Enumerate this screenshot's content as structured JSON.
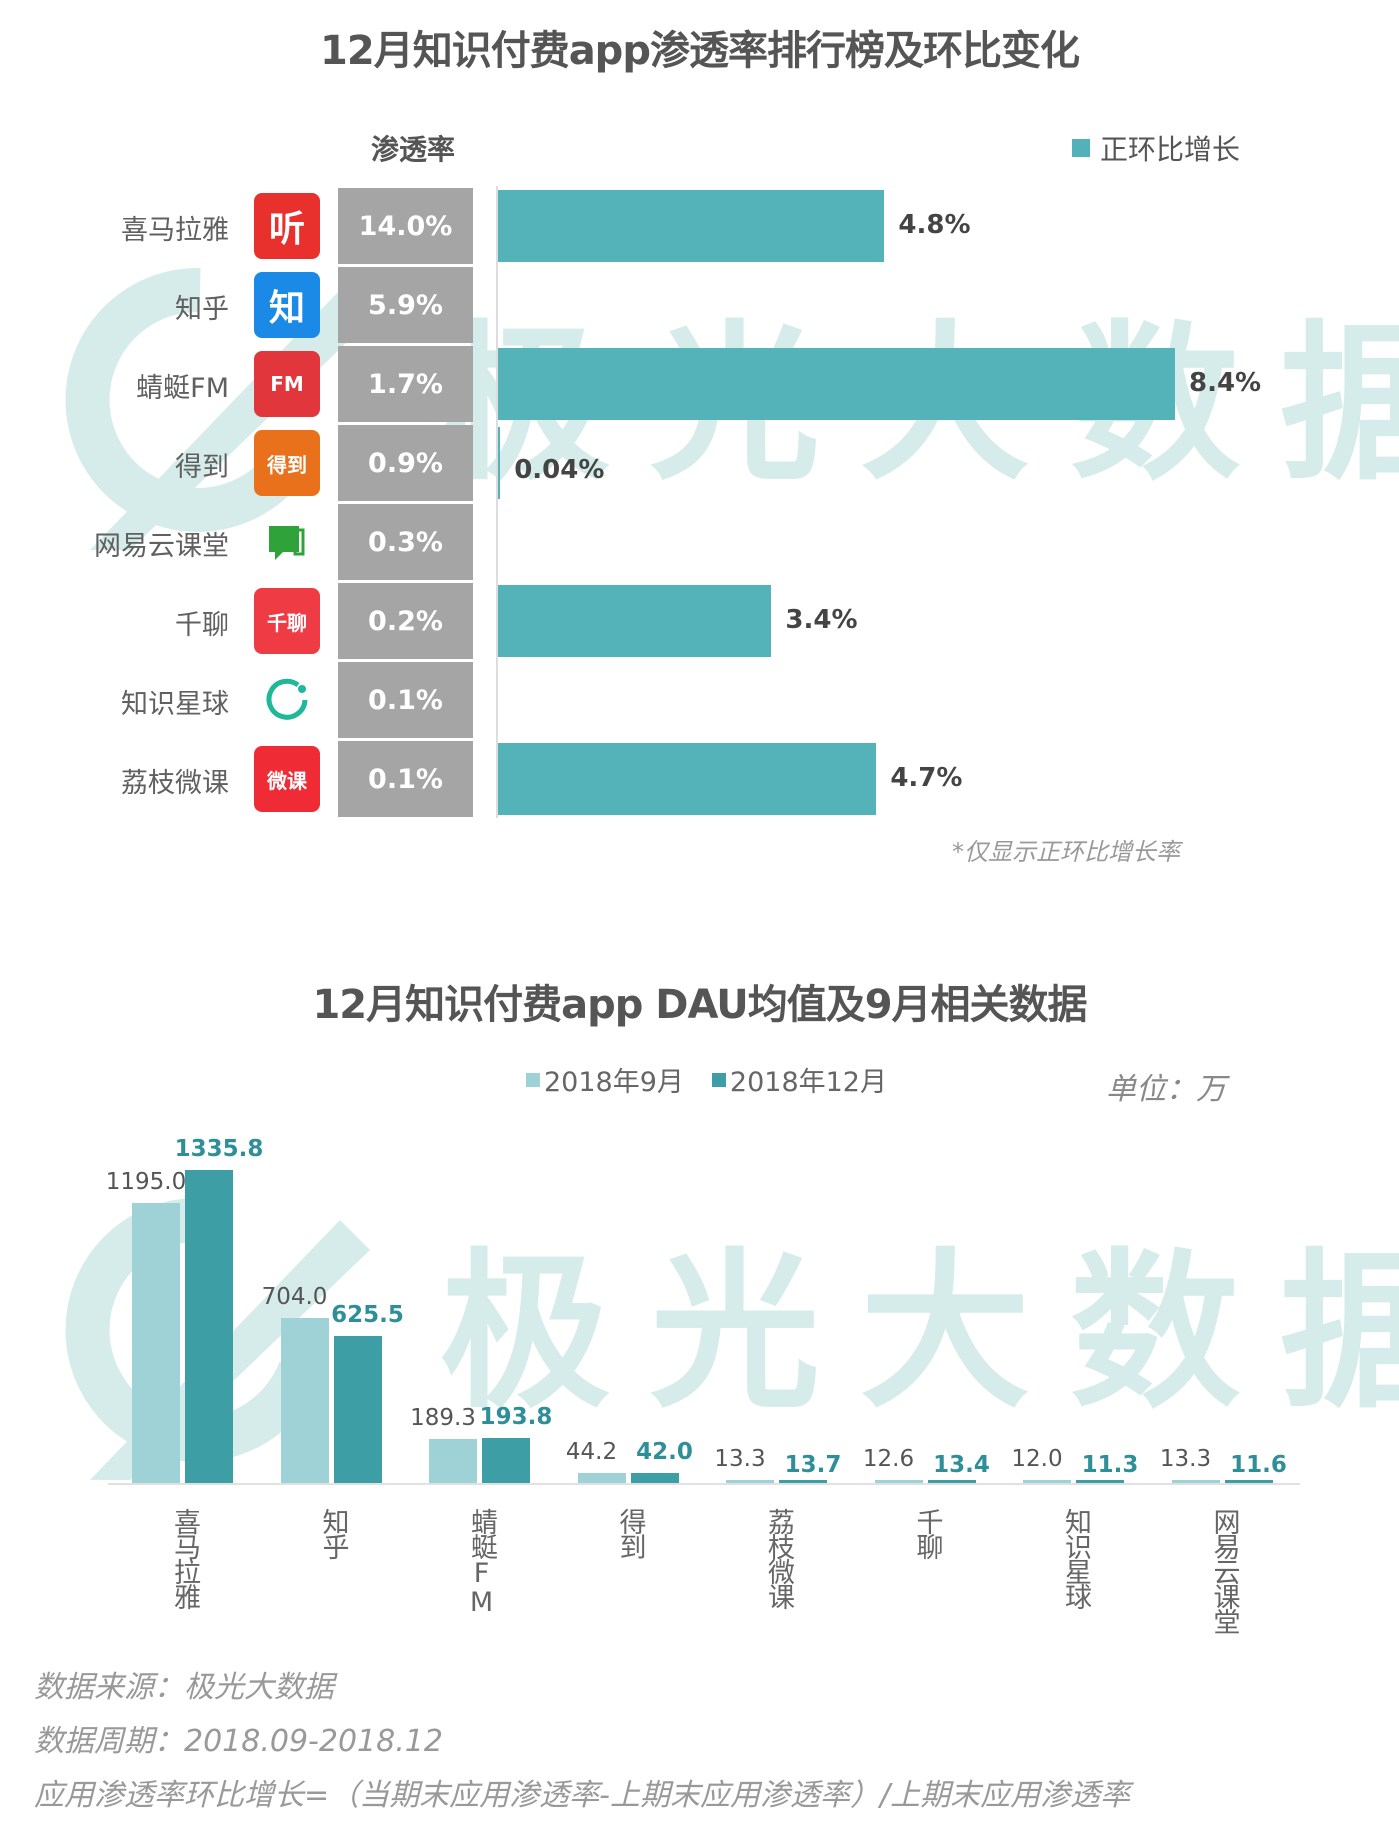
{
  "top_chart": {
    "title": "12月知识付费app渗透率排行榜及环比变化",
    "column_header": "渗透率",
    "legend_label": "正环比增长",
    "note": "*仅显示正环比增长率",
    "rows": [
      {
        "name": "喜马拉雅",
        "icon": "ximalaya-app-icon",
        "icon_text": "听",
        "icon_color": "#e8302d",
        "penetration": "14.0%",
        "growth": "4.8%",
        "growth_value": 4.8
      },
      {
        "name": "知乎",
        "icon": "zhihu-app-icon",
        "icon_text": "知",
        "icon_color": "#1a8ae6",
        "penetration": "5.9%",
        "growth": "",
        "growth_value": 0
      },
      {
        "name": "蜻蜓FM",
        "icon": "qingting-fm-app-icon",
        "icon_text": "FM",
        "icon_color": "#e1363b",
        "penetration": "1.7%",
        "growth": "8.4%",
        "growth_value": 8.4
      },
      {
        "name": "得到",
        "icon": "dedao-app-icon",
        "icon_text": "得到",
        "icon_color": "#e9711c",
        "penetration": "0.9%",
        "growth": "0.04%",
        "growth_value": 0.04
      },
      {
        "name": "网易云课堂",
        "icon": "netease-cloud-classroom-app-icon",
        "icon_text": "",
        "icon_color": "#2fa33a",
        "penetration": "0.3%",
        "growth": "",
        "growth_value": 0
      },
      {
        "name": "千聊",
        "icon": "qianliao-app-icon",
        "icon_text": "千聊",
        "icon_color": "#ef3b43",
        "penetration": "0.2%",
        "growth": "3.4%",
        "growth_value": 3.4
      },
      {
        "name": "知识星球",
        "icon": "zhishi-xingqiu-app-icon",
        "icon_text": "",
        "icon_color": "#1fb89a",
        "penetration": "0.1%",
        "growth": "",
        "growth_value": 0
      },
      {
        "name": "荔枝微课",
        "icon": "lizhi-weike-app-icon",
        "icon_text": "微课",
        "icon_color": "#ef2b35",
        "penetration": "0.1%",
        "growth": "4.7%",
        "growth_value": 4.7
      }
    ]
  },
  "bottom_chart": {
    "title": "12月知识付费app DAU均值及9月相关数据",
    "unit": "单位：万",
    "legend": [
      {
        "label": "2018年9月",
        "color": "#9fd2d6"
      },
      {
        "label": "2018年12月",
        "color": "#3e9ea6"
      }
    ]
  },
  "watermark": "极光大数据",
  "footer": {
    "source": "数据来源：极光大数据",
    "period": "数据周期：2018.09-2018.12",
    "formula": "应用渗透率环比增长=（当期末应用渗透率-上期末应用渗透率）/上期末应用渗透率"
  },
  "colors": {
    "growth_bar": "#54b2b9",
    "penetration_cell": "#a5a5a5",
    "sep_bar": "#9fd2d6",
    "dec_bar": "#3e9ea6"
  },
  "chart_data": [
    {
      "type": "bar",
      "orientation": "horizontal",
      "title": "12月知识付费app渗透率排行榜及环比变化",
      "categories": [
        "喜马拉雅",
        "知乎",
        "蜻蜓FM",
        "得到",
        "网易云课堂",
        "千聊",
        "知识星球",
        "荔枝微课"
      ],
      "table_column": {
        "name": "渗透率",
        "values": [
          "14.0%",
          "5.9%",
          "1.7%",
          "0.9%",
          "0.3%",
          "0.2%",
          "0.1%",
          "0.1%"
        ]
      },
      "series": [
        {
          "name": "正环比增长",
          "values": [
            4.8,
            null,
            8.4,
            0.04,
            null,
            3.4,
            null,
            4.7
          ],
          "unit": "%"
        }
      ],
      "legend_position": "top-right",
      "annotations": [
        "*仅显示正环比增长率"
      ],
      "grid": false
    },
    {
      "type": "bar",
      "title": "12月知识付费app DAU均值及9月相关数据",
      "categories": [
        "喜马拉雅",
        "知乎",
        "蜻蜓FM",
        "得到",
        "荔枝微课",
        "千聊",
        "知识星球",
        "网易云课堂"
      ],
      "series": [
        {
          "name": "2018年9月",
          "values": [
            1195.0,
            704.0,
            189.3,
            44.2,
            13.3,
            12.6,
            12.0,
            13.3
          ]
        },
        {
          "name": "2018年12月",
          "values": [
            1335.8,
            625.5,
            193.8,
            42.0,
            13.7,
            13.4,
            11.3,
            11.6
          ]
        }
      ],
      "ylabel": "单位：万",
      "ylim": [
        0,
        1400
      ],
      "legend_position": "top",
      "grid": false
    }
  ]
}
